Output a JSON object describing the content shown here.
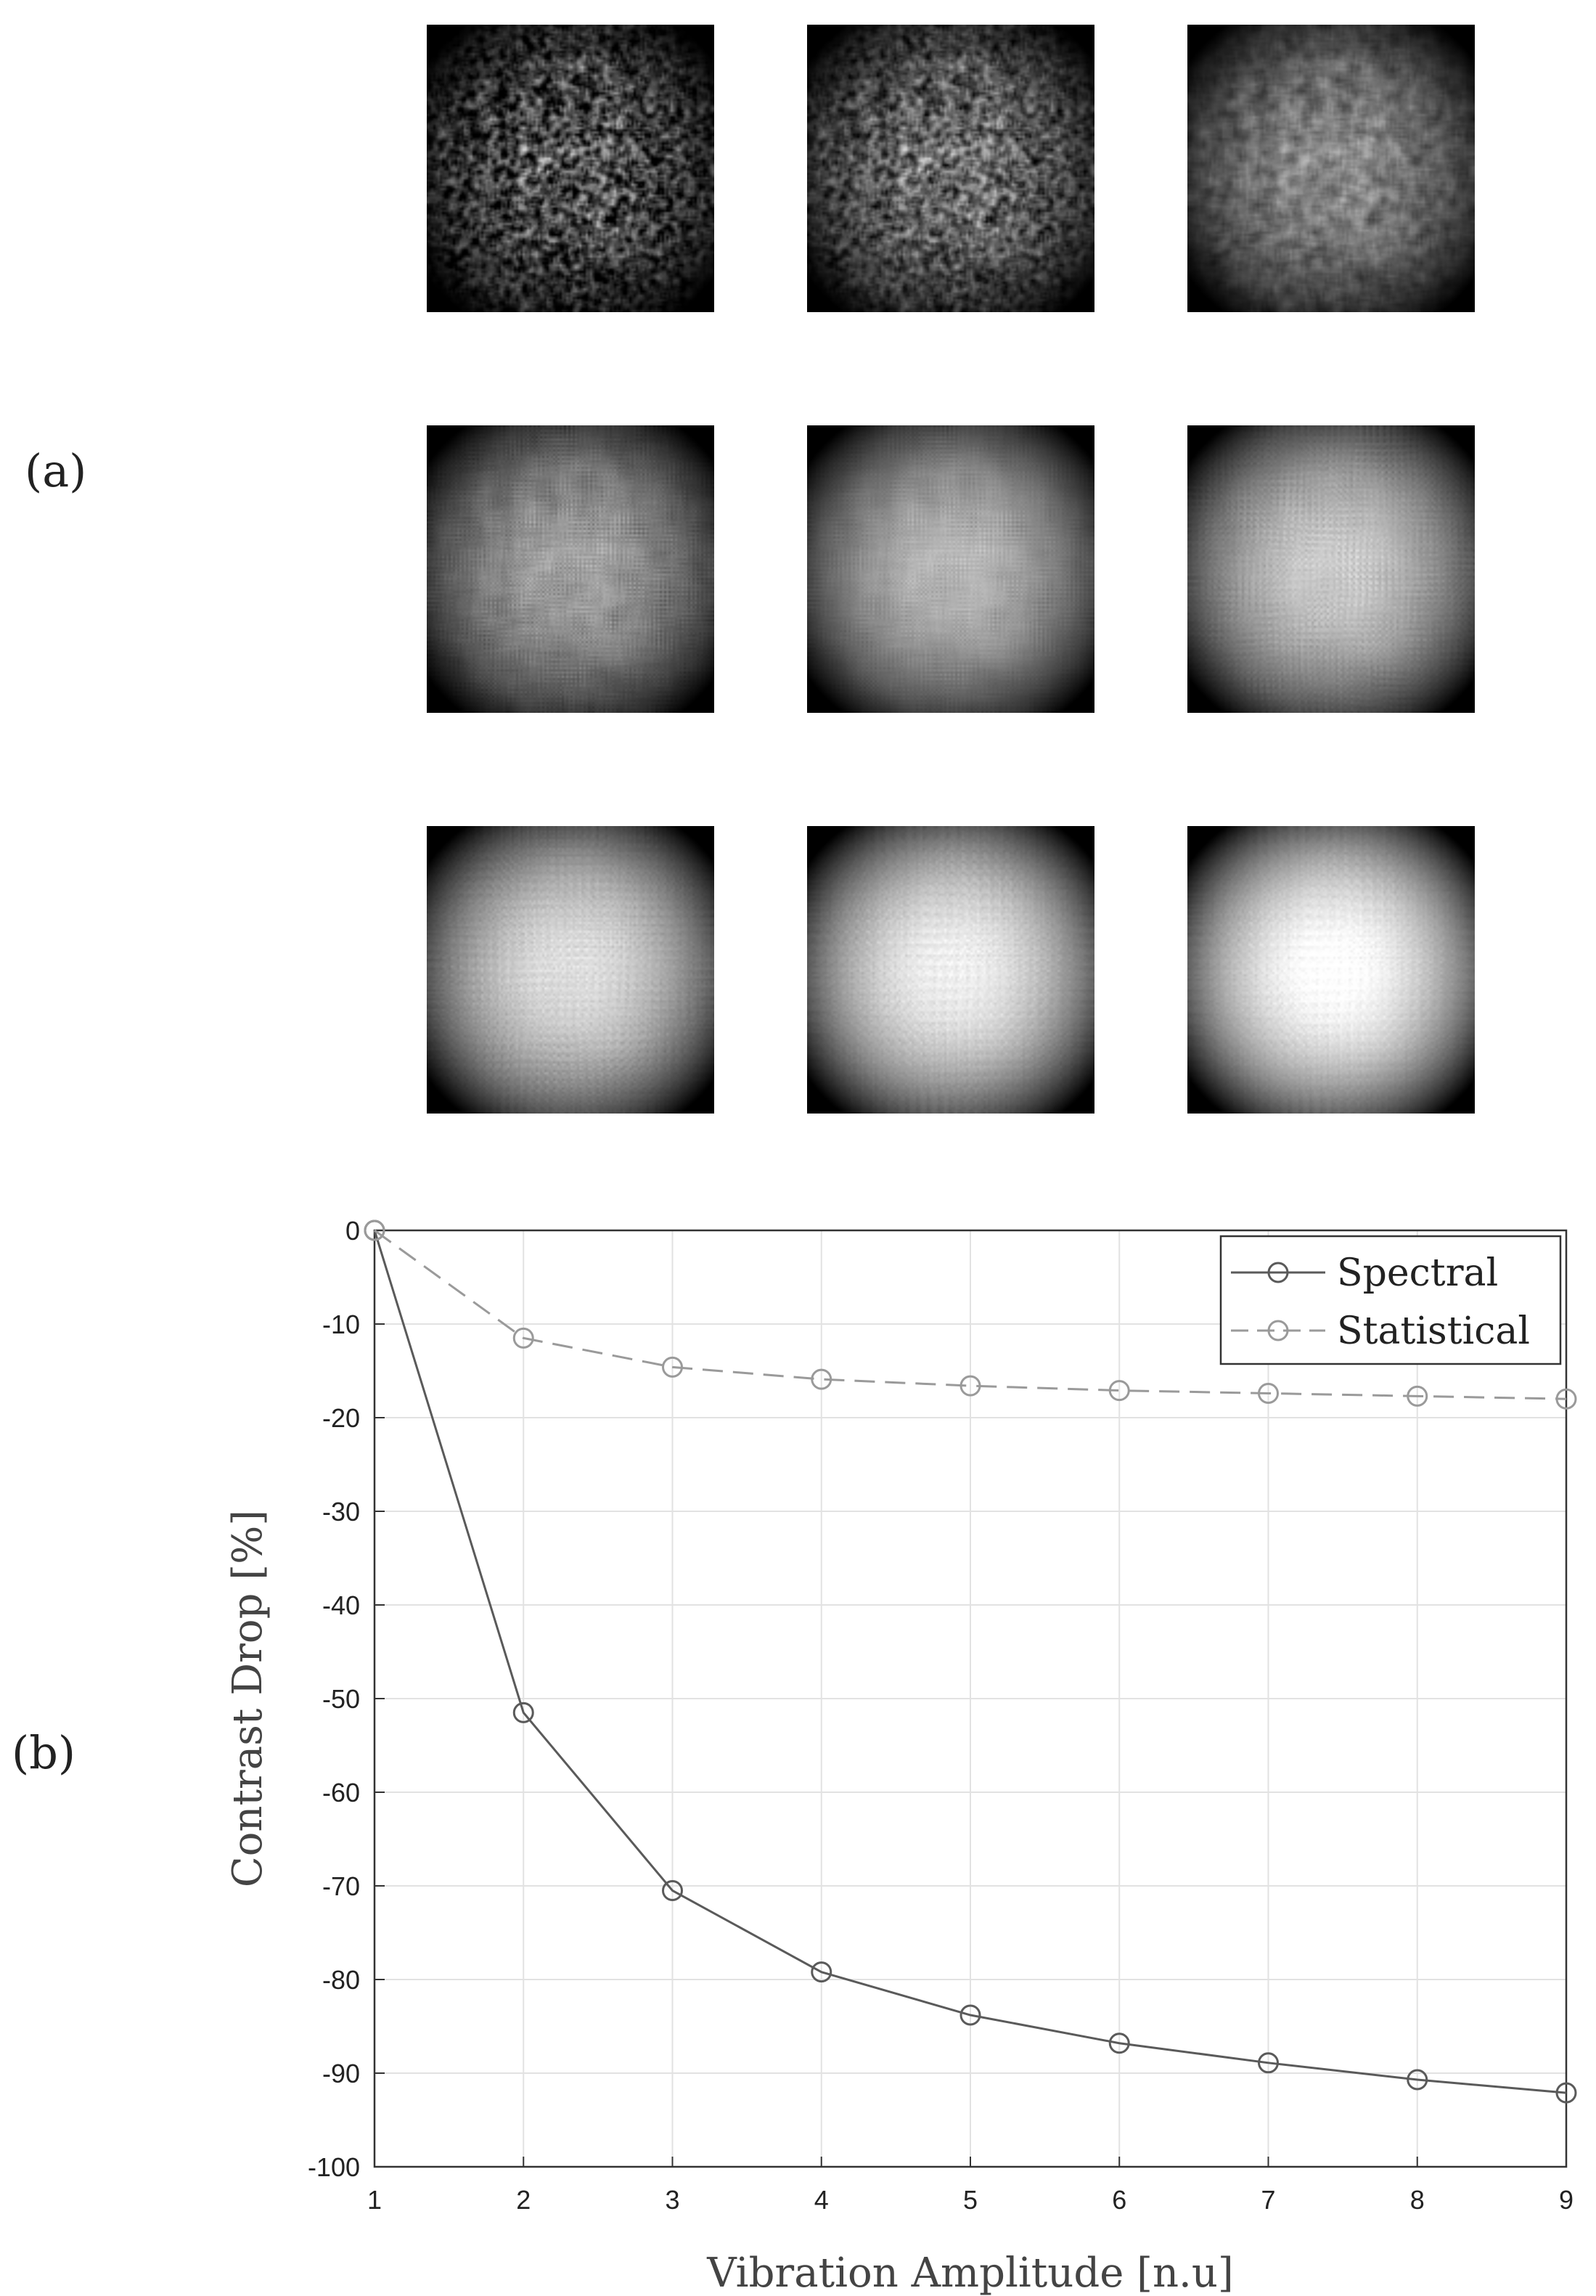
{
  "panel_labels": {
    "a": "(a)",
    "b": "(b)"
  },
  "speckle_images": {
    "rows": 3,
    "cols": 3,
    "blur_levels": [
      0.6,
      1.4,
      2.4,
      3.6,
      5.0,
      6.5,
      8.0,
      9.5,
      11.0
    ]
  },
  "chart_data": {
    "type": "line",
    "xlabel": "Vibration Amplitude [n.u]",
    "ylabel": "Contrast Drop [%]",
    "xlim": [
      1,
      9
    ],
    "ylim": [
      -100,
      0
    ],
    "xticks": [
      "1",
      "2",
      "3",
      "4",
      "5",
      "6",
      "7",
      "8",
      "9"
    ],
    "yticks": [
      "0",
      "-10",
      "-20",
      "-30",
      "-40",
      "-50",
      "-60",
      "-70",
      "-80",
      "-90",
      "-100"
    ],
    "grid": true,
    "legend_position": "top-right",
    "x": [
      1,
      2,
      3,
      4,
      5,
      6,
      7,
      8,
      9
    ],
    "series": [
      {
        "name": "Spectral",
        "values": [
          0,
          -51.5,
          -70.5,
          -79.2,
          -83.8,
          -86.8,
          -88.9,
          -90.7,
          -92.1
        ],
        "color": "#5a5a5a",
        "dash": "solid"
      },
      {
        "name": "Statistical",
        "values": [
          0,
          -11.5,
          -14.6,
          -15.9,
          -16.6,
          -17.1,
          -17.4,
          -17.7,
          -18.0
        ],
        "color": "#9a9a9a",
        "dash": "dashed"
      }
    ]
  }
}
